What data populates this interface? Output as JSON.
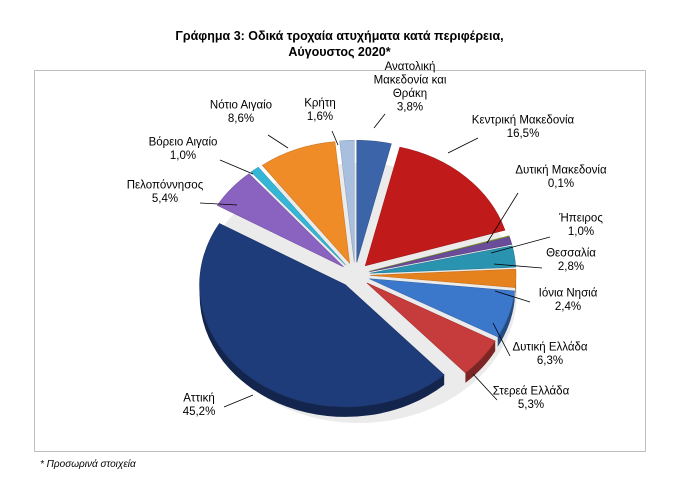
{
  "chart_data": {
    "type": "pie",
    "title_line1": "Γράφημα 3: Οδικά τροχαία ατυχήματα κατά περιφέρεια,",
    "title_line2": "Αύγουστος 2020*",
    "slices": [
      {
        "name": "Ανατολική Μακεδονία και Θράκη",
        "name_lines": [
          "Ανατολική",
          "Μακεδονία και",
          "Θράκη"
        ],
        "value": 3.8,
        "label": "3,8%",
        "color": "#3c64a8"
      },
      {
        "name": "Κεντρική Μακεδονία",
        "name_lines": [
          "Κεντρική Μακεδονία"
        ],
        "value": 16.5,
        "label": "16,5%",
        "color": "#c11a1a"
      },
      {
        "name": "Δυτική Μακεδονία",
        "name_lines": [
          "Δυτική Μακεδονία"
        ],
        "value": 0.1,
        "label": "0,1%",
        "color": "#86a13a"
      },
      {
        "name": "Ήπειρος",
        "name_lines": [
          "Ήπειρος"
        ],
        "value": 1.0,
        "label": "1,0%",
        "color": "#6a4c9a"
      },
      {
        "name": "Θεσσαλία",
        "name_lines": [
          "Θεσσαλία"
        ],
        "value": 2.8,
        "label": "2,8%",
        "color": "#2a93b0"
      },
      {
        "name": "Ιόνια Νησιά",
        "name_lines": [
          "Ιόνια Νησιά"
        ],
        "value": 2.4,
        "label": "2,4%",
        "color": "#e6821e"
      },
      {
        "name": "Δυτική Ελλάδα",
        "name_lines": [
          "Δυτική Ελλάδα"
        ],
        "value": 6.3,
        "label": "6,3%",
        "color": "#3b78cc"
      },
      {
        "name": "Στερεά Ελλάδα",
        "name_lines": [
          "Στερεά Ελλάδα"
        ],
        "value": 5.3,
        "label": "5,3%",
        "color": "#c63c3c"
      },
      {
        "name": "Αττική",
        "name_lines": [
          "Αττική"
        ],
        "value": 45.2,
        "label": "45,2%",
        "color": "#1f3c7a"
      },
      {
        "name": "Πελοπόννησος",
        "name_lines": [
          "Πελοπόννησος"
        ],
        "value": 5.4,
        "label": "5,4%",
        "color": "#8a62c0"
      },
      {
        "name": "Βόρειο Αιγαίο",
        "name_lines": [
          "Βόρειο Αιγαίο"
        ],
        "value": 1.0,
        "label": "1,0%",
        "color": "#35b6d6"
      },
      {
        "name": "Νότιο Αιγαίο",
        "name_lines": [
          "Νότιο Αιγαίο"
        ],
        "value": 8.6,
        "label": "8,6%",
        "color": "#f08c28"
      },
      {
        "name": "Κρήτη",
        "name_lines": [
          "Κρήτη"
        ],
        "value": 1.6,
        "label": "1,6%",
        "color": "#a9bfe0"
      }
    ],
    "legend": "none",
    "footnote": "* Προσωρινά στοιχεία"
  }
}
